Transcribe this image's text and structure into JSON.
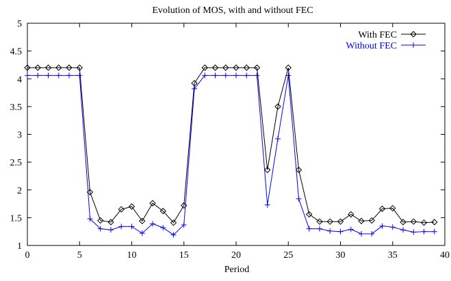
{
  "chart_data": {
    "type": "line",
    "title": "Evolution of MOS, with and without FEC",
    "xlabel": "Period",
    "ylabel": "",
    "xlim": [
      0,
      40
    ],
    "ylim": [
      1,
      5
    ],
    "xticks": [
      0,
      5,
      10,
      15,
      20,
      25,
      30,
      35,
      40
    ],
    "yticks": [
      1,
      1.5,
      2,
      2.5,
      3,
      3.5,
      4,
      4.5,
      5
    ],
    "xtick_labels": [
      "0",
      "5",
      "10",
      "15",
      "20",
      "25",
      "30",
      "35",
      "40"
    ],
    "ytick_labels": [
      "1",
      "1.5",
      "2",
      "2.5",
      "3",
      "3.5",
      "4",
      "4.5",
      "5"
    ],
    "grid": false,
    "legend_position": "top-right",
    "x": [
      0,
      1,
      2,
      3,
      4,
      5,
      6,
      7,
      8,
      9,
      10,
      11,
      12,
      13,
      14,
      15,
      16,
      17,
      18,
      19,
      20,
      21,
      22,
      23,
      24,
      25,
      26,
      27,
      28,
      29,
      30,
      31,
      32,
      33,
      34,
      35,
      36,
      37,
      38,
      39
    ],
    "series": [
      {
        "name": "With FEC",
        "color": "#000000",
        "marker": "diamond",
        "values": [
          4.2,
          4.2,
          4.2,
          4.2,
          4.2,
          4.2,
          1.96,
          1.45,
          1.42,
          1.65,
          1.7,
          1.44,
          1.76,
          1.62,
          1.41,
          1.72,
          3.92,
          4.2,
          4.2,
          4.2,
          4.2,
          4.2,
          4.2,
          2.36,
          3.5,
          4.2,
          2.36,
          1.56,
          1.43,
          1.43,
          1.43,
          1.56,
          1.44,
          1.45,
          1.66,
          1.67,
          1.42,
          1.43,
          1.41,
          1.42
        ]
      },
      {
        "name": "Without FEC",
        "color": "#0000ff",
        "marker": "plus",
        "values": [
          4.06,
          4.06,
          4.06,
          4.06,
          4.06,
          4.06,
          1.48,
          1.3,
          1.28,
          1.34,
          1.34,
          1.22,
          1.39,
          1.32,
          1.19,
          1.37,
          3.82,
          4.06,
          4.06,
          4.06,
          4.06,
          4.06,
          4.06,
          1.73,
          2.92,
          4.06,
          1.84,
          1.3,
          1.3,
          1.26,
          1.25,
          1.29,
          1.21,
          1.21,
          1.35,
          1.33,
          1.28,
          1.24,
          1.25,
          1.25
        ]
      }
    ]
  }
}
